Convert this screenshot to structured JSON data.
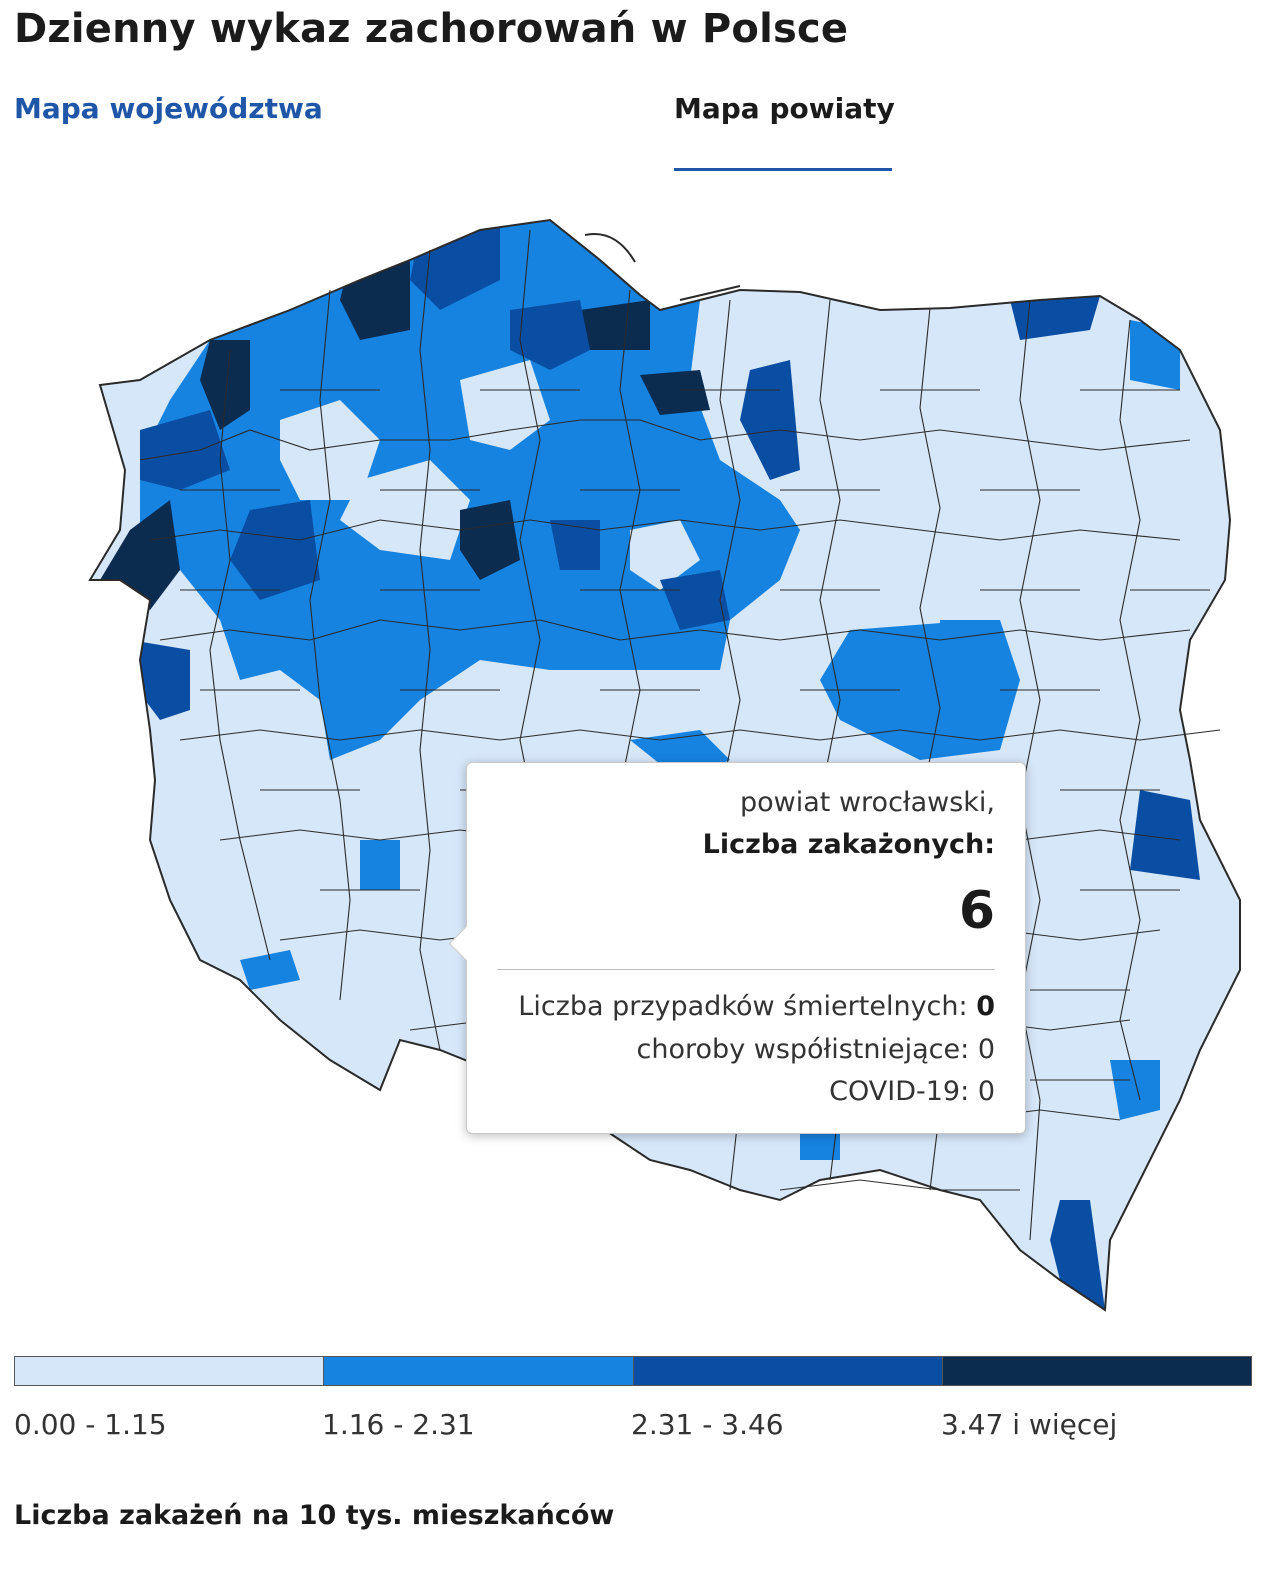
{
  "page": {
    "title": "Dzienny wykaz zachorowań w Polsce"
  },
  "tabs": [
    {
      "label": "Mapa województwa",
      "active": false
    },
    {
      "label": "Mapa powiaty",
      "active": true
    }
  ],
  "colors": {
    "class_0": "#d6e7f9",
    "class_1": "#1683e0",
    "class_2": "#0a4ea3",
    "class_3": "#0b2b4f",
    "border": "#2a2a2a",
    "tab_active": "#1f56a8"
  },
  "tooltip": {
    "place": "powiat wrocławski,",
    "label": "Liczba zakażonych:",
    "value": "6",
    "deaths_label": "Liczba przypadków śmiertelnych:",
    "deaths_value": "0",
    "comorbid_label": "choroby współistniejące:",
    "comorbid_value": "0",
    "covid_label": "COVID-19:",
    "covid_value": "0"
  },
  "legend": {
    "items": [
      {
        "label": "0.00 - 1.15",
        "color": "#d6e7f9"
      },
      {
        "label": "1.16 - 2.31",
        "color": "#1683e0"
      },
      {
        "label": "2.31 - 3.46",
        "color": "#0a4ea3"
      },
      {
        "label": "3.47 i więcej",
        "color": "#0b2b4f"
      }
    ],
    "caption": "Liczba zakażeń na 10 tys. mieszkańców"
  }
}
